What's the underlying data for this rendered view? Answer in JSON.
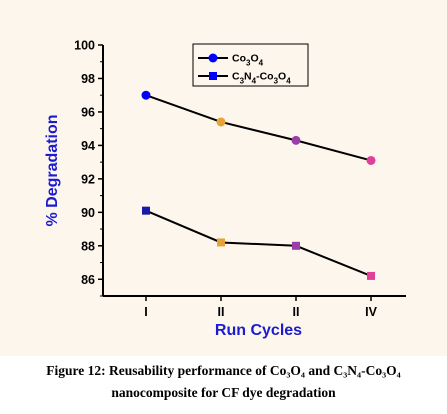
{
  "chart_data": {
    "type": "line",
    "categories": [
      "I",
      "II",
      "II",
      "IV"
    ],
    "xlabel": "Run Cycles",
    "ylabel": "% Degradation",
    "ylim": [
      85,
      100
    ],
    "yticks": [
      86,
      88,
      90,
      92,
      94,
      96,
      98,
      100
    ],
    "grid": false,
    "legend_position": "top-center",
    "series": [
      {
        "name_main": "Co",
        "name_sub1": "3",
        "name_mid": "O",
        "name_sub2": "4",
        "values": [
          97.0,
          95.4,
          94.3,
          93.1
        ],
        "line_color": "#000000",
        "marker": "circle",
        "legend_marker_color": "#0000ff",
        "point_colors": [
          "#0000ff",
          "#e8a23a",
          "#9a3da8",
          "#e0409a"
        ]
      },
      {
        "name_main": "C",
        "name_sub1": "3",
        "name_mid": "N",
        "name_sub2": "4",
        "name_tail": "-Co",
        "name_sub3": "3",
        "name_tail2": "O",
        "name_sub4": "4",
        "values": [
          90.1,
          88.2,
          88.0,
          86.2
        ],
        "line_color": "#000000",
        "marker": "square",
        "legend_marker_color": "#0000ff",
        "point_colors": [
          "#1a1aa8",
          "#e8a23a",
          "#9a3da8",
          "#e0409a"
        ]
      }
    ]
  },
  "caption": {
    "line1": "Figure 12: Reusability performance of Co₃O₄ and C₃N₄-Co₃O₄",
    "line2": "nanocomposite for CF dye degradation"
  }
}
